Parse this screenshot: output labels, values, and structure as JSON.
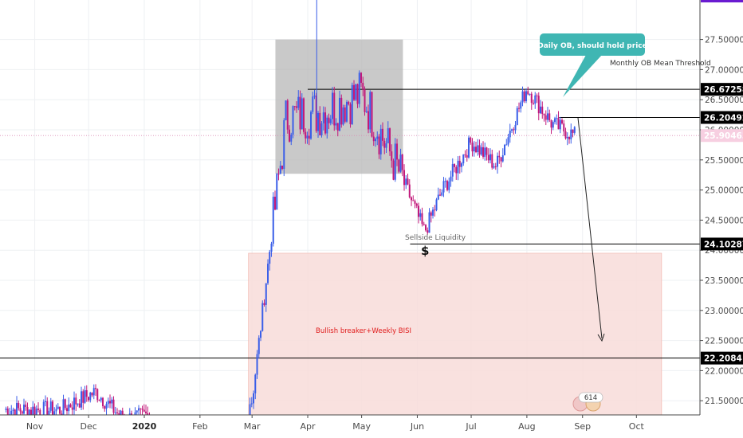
{
  "chart_data": {
    "type": "candlestick",
    "x_labels": [
      "Nov",
      "Dec",
      "2020",
      "Feb",
      "Mar",
      "Apr",
      "May",
      "Jun",
      "Jul",
      "Aug",
      "Sep",
      "Oct"
    ],
    "y_ticks": [
      "27.50000",
      "27.00000",
      "26.50000",
      "26.00000",
      "25.50000",
      "25.00000",
      "24.50000",
      "24.00000",
      "23.50000",
      "23.00000",
      "22.50000",
      "22.00000",
      "21.50000"
    ],
    "ylim": [
      21.1,
      27.65
    ],
    "levels": [
      {
        "value": 26.67258,
        "label": "26.67258",
        "style": "solid"
      },
      {
        "value": 26.20492,
        "label": "26.20492",
        "style": "solid"
      },
      {
        "value": 25.90463,
        "label": "25.90463",
        "style": "dotted-current"
      },
      {
        "value": 24.10287,
        "label": "24.10287",
        "style": "solid"
      },
      {
        "value": 22.20841,
        "label": "22.20841",
        "style": "solid"
      }
    ],
    "zones": [
      {
        "name": "order-block-box",
        "from": "2020-03-14",
        "to": "2020-05-24",
        "high": 27.5,
        "low": 25.27,
        "color": "#b7b7b7"
      },
      {
        "name": "bullish-breaker-zone",
        "from": "2020-02-28",
        "to": "2020-10-15",
        "high": 23.95,
        "low": 21.1,
        "color": "#f8dcd9"
      }
    ],
    "annotations": {
      "monthly_ob": "Monthly OB Mean Threshold",
      "daily_ob": "Daily OB, should hold price",
      "sellside": "Sellside Liquidity",
      "dollar": "$",
      "breaker": "Bullish breaker+Weekly BISI",
      "badge": "614"
    },
    "candles_approx": [
      {
        "date": "2019-10-15",
        "close": 21.35
      },
      {
        "date": "2019-11-15",
        "close": 21.35
      },
      {
        "date": "2019-12-05",
        "close": 21.65
      },
      {
        "date": "2019-12-20",
        "close": 21.2
      },
      {
        "date": "2020-01-02",
        "close": 21.25
      },
      {
        "date": "2020-03-01",
        "close": 21.5
      },
      {
        "date": "2020-03-10",
        "close": 23.8
      },
      {
        "date": "2020-03-20",
        "close": 26.2
      },
      {
        "date": "2020-04-10",
        "close": 26.3
      },
      {
        "date": "2020-05-01",
        "close": 26.6
      },
      {
        "date": "2020-05-25",
        "close": 25.1
      },
      {
        "date": "2020-06-05",
        "close": 24.3
      },
      {
        "date": "2020-06-15",
        "close": 25.0
      },
      {
        "date": "2020-07-01",
        "close": 25.8
      },
      {
        "date": "2020-07-15",
        "close": 25.4
      },
      {
        "date": "2020-08-01",
        "close": 26.7
      },
      {
        "date": "2020-08-15",
        "close": 26.1
      },
      {
        "date": "2020-08-28",
        "close": 25.9
      }
    ],
    "colors": {
      "up": "#3a5ee8",
      "down": "#c2187a",
      "level": "#000000",
      "label_bg": "#000000",
      "current_bg": "#f7cfe1",
      "callout": "#3fb6b3",
      "arrow": "#222222",
      "accent_top": "#6a1bd1"
    }
  }
}
